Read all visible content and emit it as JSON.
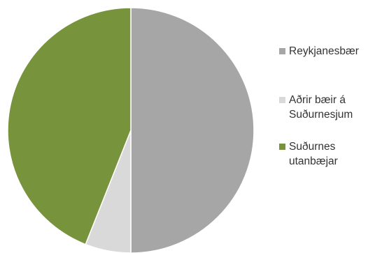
{
  "chart_data": {
    "type": "pie",
    "title": "",
    "legend_position": "right",
    "slices": [
      {
        "label_lines": [
          "Reykjanesbær"
        ],
        "value": 50.0,
        "color": "#a6a6a6"
      },
      {
        "label_lines": [
          "Aðrir bæir á",
          "Suðurnesjum"
        ],
        "value": 6.0,
        "color": "#d9d9d9"
      },
      {
        "label_lines": [
          "Suðurnes",
          "utanbæjar"
        ],
        "value": 44.0,
        "color": "#77933c"
      }
    ]
  }
}
